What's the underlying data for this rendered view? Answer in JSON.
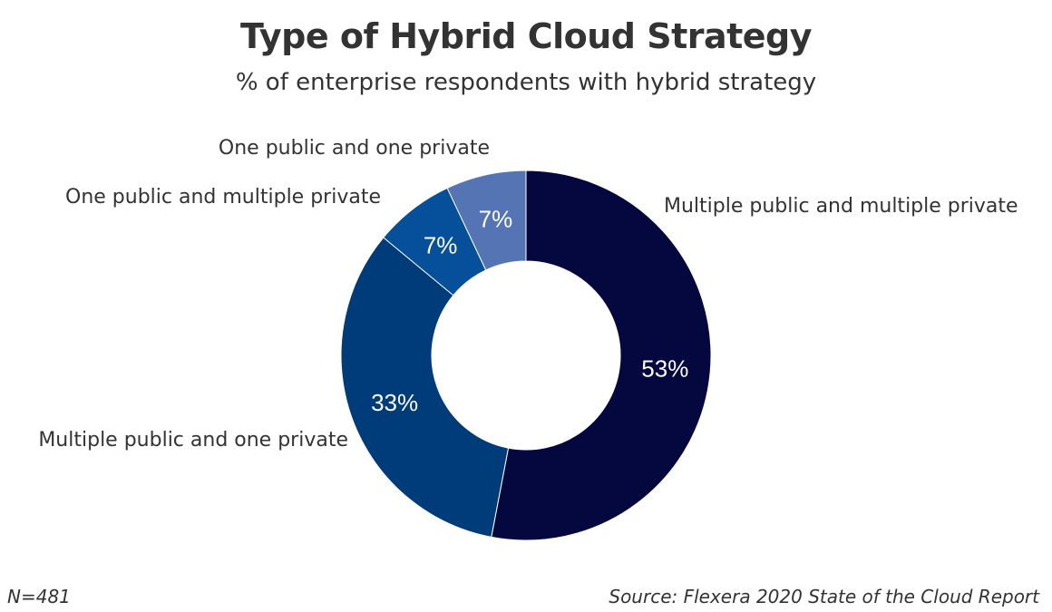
{
  "chart_data": {
    "type": "pie",
    "title": "Type of Hybrid Cloud Strategy",
    "subtitle": "% of enterprise respondents with hybrid strategy",
    "slices": [
      {
        "label": "Multiple public and multiple private",
        "value": 53,
        "value_label": "53%",
        "color": "#04083f"
      },
      {
        "label": "Multiple public and one private",
        "value": 33,
        "value_label": "33%",
        "color": "#003b7a"
      },
      {
        "label": "One public and multiple private",
        "value": 7,
        "value_label": "7%",
        "color": "#054f9b"
      },
      {
        "label": "One public and one private",
        "value": 7,
        "value_label": "7%",
        "color": "#5474b4"
      }
    ],
    "donut": true,
    "legend": "none"
  },
  "notes": {
    "n": "N=481",
    "source": "Source: Flexera 2020 State of the Cloud Report"
  }
}
